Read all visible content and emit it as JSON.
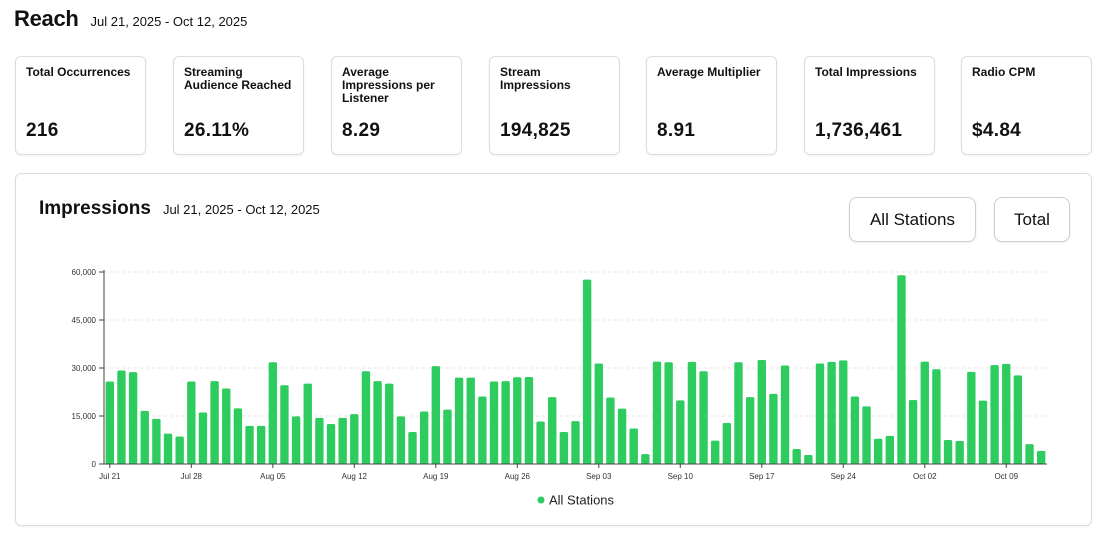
{
  "header": {
    "title": "Reach",
    "date_range": "Jul 21, 2025 - Oct 12, 2025"
  },
  "stats": [
    {
      "label": "Total Occurrences",
      "value": "216"
    },
    {
      "label": "Streaming Audience Reached",
      "value": "26.11%"
    },
    {
      "label": "Average Impressions per Listener",
      "value": "8.29"
    },
    {
      "label": "Stream Impressions",
      "value": "194,825"
    },
    {
      "label": "Average Multiplier",
      "value": "8.91"
    },
    {
      "label": "Total Impressions",
      "value": "1,736,461"
    },
    {
      "label": "Radio CPM",
      "value": "$4.84"
    }
  ],
  "chart_section": {
    "title": "Impressions",
    "date_range": "Jul 21, 2025 - Oct 12, 2025",
    "station_button": "All Stations",
    "mode_button": "Total"
  },
  "colors": {
    "bar": "#2ecc5f",
    "grid": "#e6e6e6",
    "axis": "#444444"
  },
  "chart_data": {
    "type": "bar",
    "title": "Impressions",
    "xlabel": "",
    "ylabel": "",
    "ylim": [
      0,
      60000
    ],
    "y_ticks": [
      0,
      15000,
      30000,
      45000,
      60000
    ],
    "y_tick_labels": [
      "0",
      "15,000",
      "30,000",
      "45,000",
      "60,000"
    ],
    "x_tick_labels": [
      "Jul 21",
      "Jul 28",
      "Aug 05",
      "Aug 12",
      "Aug 19",
      "Aug 26",
      "Sep 03",
      "Sep 10",
      "Sep 17",
      "Sep 24",
      "Oct 02",
      "Oct 09"
    ],
    "x_tick_indices": [
      0,
      7,
      14,
      21,
      28,
      35,
      42,
      49,
      56,
      63,
      70,
      77
    ],
    "grid": true,
    "legend": {
      "position": "bottom-center",
      "label": "All Stations"
    },
    "series": [
      {
        "name": "All Stations",
        "values": [
          25800,
          29200,
          28700,
          16600,
          14100,
          9500,
          8600,
          25800,
          16100,
          25900,
          23600,
          17400,
          11900,
          11900,
          31800,
          24600,
          14900,
          25100,
          14400,
          12500,
          14400,
          15600,
          29000,
          25900,
          25100,
          14900,
          10000,
          16400,
          30600,
          17000,
          27000,
          27000,
          21100,
          25800,
          25900,
          27100,
          27200,
          13300,
          20900,
          10000,
          13400,
          57600,
          31400,
          20800,
          17300,
          11100,
          3100,
          32000,
          31800,
          19900,
          31900,
          29000,
          7300,
          12800,
          31800,
          20900,
          32500,
          21900,
          30800,
          4700,
          2800,
          31400,
          31900,
          32400,
          21100,
          18000,
          7900,
          8800,
          59000,
          20000,
          32000,
          29600,
          7500,
          7200,
          28800,
          19800,
          30900,
          31300,
          27700,
          6200,
          4100
        ]
      }
    ]
  }
}
